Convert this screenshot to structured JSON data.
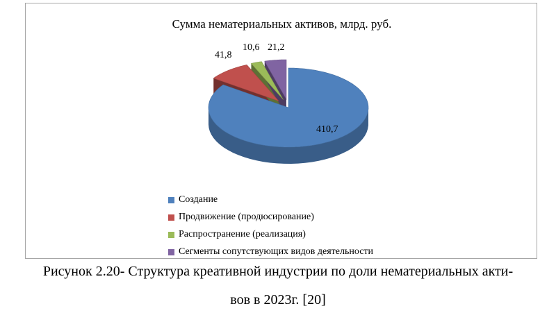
{
  "chart_data": {
    "type": "pie",
    "title": "Сумма нематериальных активов, млрд. руб.",
    "categories": [
      "Создание",
      "Продвижение (продюсирование)",
      "Распространение (реализация)",
      "Сегменты сопутствующих видов деятельности"
    ],
    "values": [
      410.7,
      41.8,
      10.6,
      21.2
    ],
    "data_labels": [
      "410,7",
      "41,8",
      "10,6",
      "21,2"
    ],
    "colors": [
      "#4f81bd",
      "#c0504d",
      "#9bbb59",
      "#8064a2"
    ],
    "style": "3d-exploded",
    "legend_placement": "bottom-left"
  },
  "caption": {
    "line1": "Рисунок 2.20- Структура креативной индустрии по доли нематериальных акти-",
    "line2": "вов в 2023г. [20]"
  }
}
